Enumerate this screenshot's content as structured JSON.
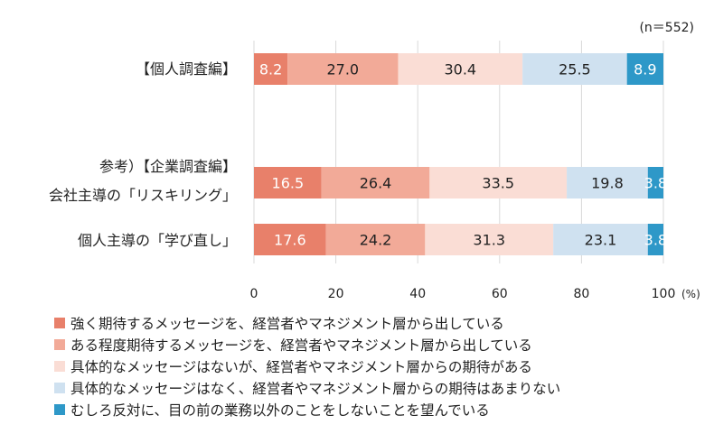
{
  "chart_data": {
    "type": "bar",
    "orientation": "horizontal",
    "stacked": true,
    "note": "(n＝552)",
    "unit": "(%)",
    "xlim": [
      0,
      100
    ],
    "xticks": [
      "0",
      "20",
      "40",
      "60",
      "80",
      "100"
    ],
    "grid": true,
    "legend_position": "bottom",
    "groups": [
      {
        "labels": [
          "【個人調査編】"
        ]
      },
      {
        "labels": [
          "参考）【企業調査編】",
          "会社主導の「リスキリング」"
        ]
      },
      {
        "labels": [
          "個人主導の「学び直し」"
        ]
      }
    ],
    "categories": [
      "【個人調査編】",
      "会社主導の「リスキリング」",
      "個人主導の「学び直し」"
    ],
    "series": [
      {
        "name": "強く期待するメッセージを、経営者やマネジメント層から出している",
        "color": "#E8806A",
        "values": [
          8.2,
          16.5,
          17.6
        ],
        "labels": [
          "8.2",
          "16.5",
          "17.6"
        ],
        "label_color": "#ffffff"
      },
      {
        "name": "ある程度期待するメッセージを、経営者やマネジメント層から出している",
        "color": "#F2AA98",
        "values": [
          27.0,
          26.4,
          24.2
        ],
        "labels": [
          "27.0",
          "26.4",
          "24.2"
        ],
        "label_color": "#222222"
      },
      {
        "name": "具体的なメッセージはないが、経営者やマネジメント層からの期待がある",
        "color": "#FADDD5",
        "values": [
          30.4,
          33.5,
          31.3
        ],
        "labels": [
          "30.4",
          "33.5",
          "31.3"
        ],
        "label_color": "#222222"
      },
      {
        "name": "具体的なメッセージはなく、経営者やマネジメント層からの期待はあまりない",
        "color": "#CFE1F0",
        "values": [
          25.5,
          19.8,
          23.1
        ],
        "labels": [
          "25.5",
          "19.8",
          "23.1"
        ],
        "label_color": "#222222"
      },
      {
        "name": "むしろ反対に、目の前の業務以外のことをしないことを望んでいる",
        "color": "#2E98C8",
        "values": [
          8.9,
          3.8,
          3.8
        ],
        "labels": [
          "8.9",
          "3.8",
          "3.8"
        ],
        "label_color": "#ffffff"
      }
    ]
  }
}
